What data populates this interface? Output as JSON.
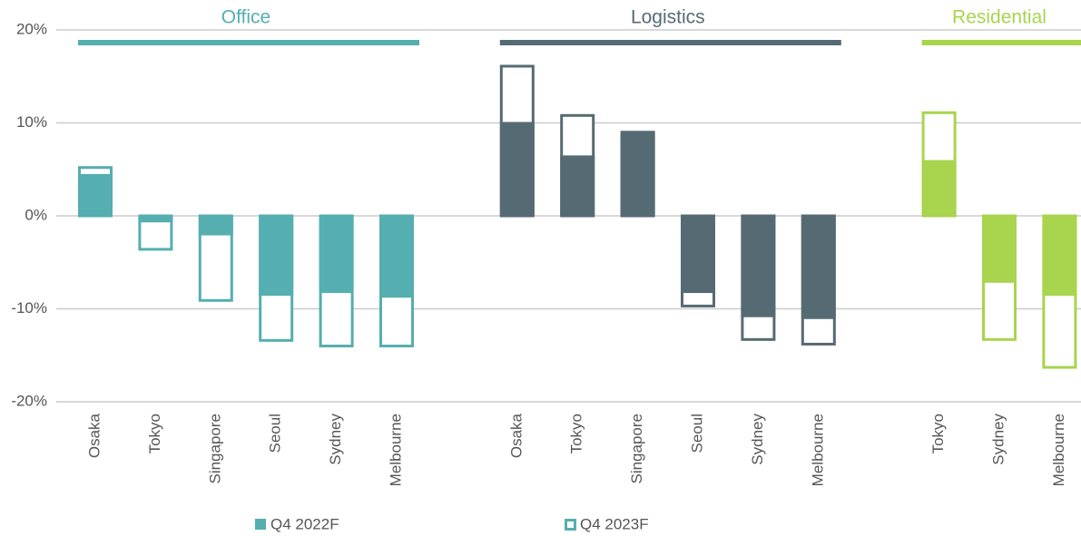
{
  "chart_data": {
    "type": "bar",
    "ylim": [
      -20,
      20
    ],
    "yticks": [
      {
        "value": -20,
        "label": "-20%"
      },
      {
        "value": -10,
        "label": "-10%"
      },
      {
        "value": 0,
        "label": "0%"
      },
      {
        "value": 10,
        "label": "10%"
      },
      {
        "value": 20,
        "label": "20%"
      }
    ],
    "grid": true,
    "series_names": [
      "Q4 2022F",
      "Q4 2023F"
    ],
    "legend_color": "#55aeb0",
    "groups": [
      {
        "name": "Office",
        "color": "#55aeb0",
        "categories": [
          "Osaka",
          "Tokyo",
          "Singapore",
          "Seoul",
          "Sydney",
          "Melbourne"
        ],
        "series": [
          [
            4.5,
            -0.7,
            -2.1,
            -8.6,
            -8.3,
            -8.8
          ],
          [
            5.2,
            -3.6,
            -9.1,
            -13.4,
            -14.0,
            -14.0
          ]
        ]
      },
      {
        "name": "Logistics",
        "color": "#566a73",
        "categories": [
          "Osaka",
          "Tokyo",
          "Singapore",
          "Seoul",
          "Sydney",
          "Melbourne"
        ],
        "series": [
          [
            10.1,
            6.5,
            9.0,
            -8.3,
            -10.9,
            -11.1
          ],
          [
            16.1,
            10.8,
            9.0,
            -9.7,
            -13.3,
            -13.8
          ]
        ]
      },
      {
        "name": "Residential",
        "color": "#a8d44e",
        "categories": [
          "Tokyo",
          "Sydney",
          "Melbourne"
        ],
        "series": [
          [
            6.0,
            -7.2,
            -8.6
          ],
          [
            11.1,
            -13.3,
            -16.3
          ]
        ]
      }
    ]
  }
}
